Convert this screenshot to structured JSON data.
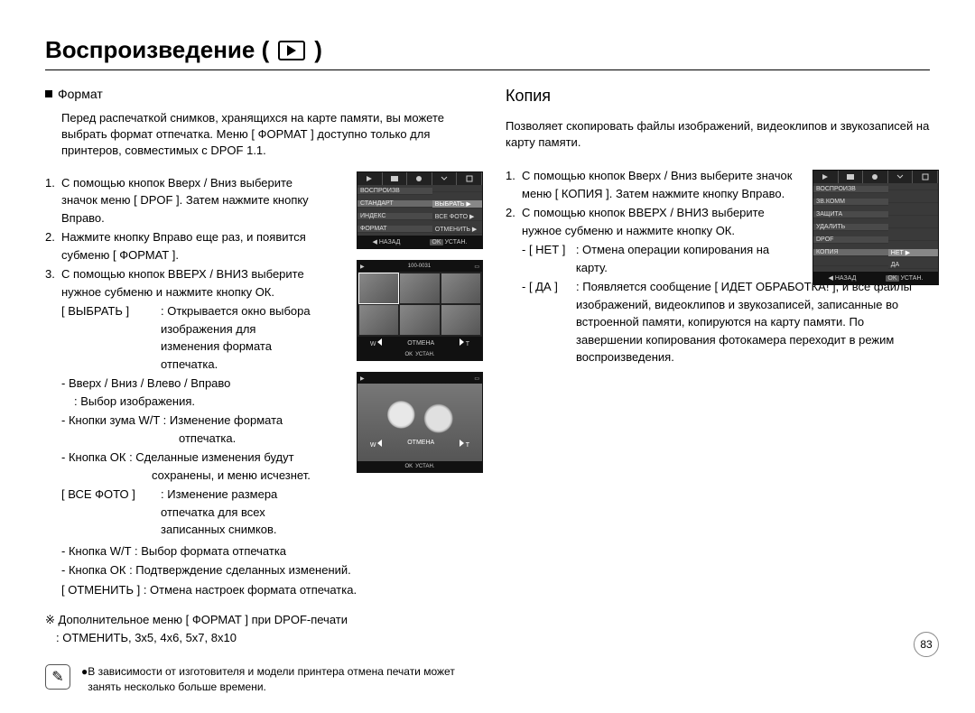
{
  "title": "Воспроизведение (",
  "title_close": ")",
  "left": {
    "subhead": "Формат",
    "intro": "Перед распечаткой снимков, хранящихся на карте памяти, вы можете выбрать формат отпечатка. Меню [ ФОРМАТ ] доступно только для принтеров, совместимых с DPOF 1.1.",
    "step1": "С помощью кнопок Вверх / Вниз выберите значок меню [ DPOF ]. Затем нажмите кнопку Вправо.",
    "step2": "Нажмите кнопку Вправо еще раз, и появится субменю [ ФОРМАТ ].",
    "step3": "С помощью кнопок ВВЕРХ / ВНИЗ выберите нужное субменю и нажмите кнопку ОК.",
    "select_label": "[ ВЫБРАТЬ ]",
    "select_desc": ": Открывается окно выбора изображения для изменения формата отпечатка.",
    "nav_label": "- Вверх / Вниз / Влево / Вправо",
    "nav_desc": ": Выбор изображения.",
    "zoom_label": "- Кнопки зума W/T : Изменение формата",
    "zoom_desc": "отпечатка.",
    "ok_label": "- Кнопка ОК : Сделанные изменения будут",
    "ok_desc": "сохранены, и меню исчезнет.",
    "all_label": "[ ВСЕ ФОТО ]",
    "all_desc": ": Изменение размера отпечатка для всех записанных снимков.",
    "wt_label": "- Кнопка W/T : Выбор формата отпечатка",
    "ok2_label": "- Кнопка ОК : Подтверждение сделанных изменений.",
    "cancel_label": "[ ОТМЕНИТЬ ] : Отмена настроек формата отпечатка.",
    "extra_pre": "※ Дополнительное меню [ ФОРМАТ ] при DPOF-печати",
    "extra_vals": ": ОТМЕНИТЬ, 3x5, 4x6, 5x7, 8x10",
    "note": "В зависимости от изготовителя и модели принтера отмена печати может занять несколько больше времени."
  },
  "right": {
    "heading": "Копия",
    "intro": "Позволяет скопировать файлы изображений, видеоклипов и звукозаписей на карту памяти.",
    "step1": "С помощью кнопок Вверх / Вниз выберите значок меню [ КОПИЯ ]. Затем нажмите кнопку Вправо.",
    "step2": "С помощью кнопок ВВЕРХ / ВНИЗ выберите нужное субменю и нажмите кнопку ОК.",
    "no_label": "- [ НЕТ ]",
    "no_desc": ": Отмена операции копирования на карту.",
    "yes_label": "- [ ДА ]",
    "yes_desc": ": Появляется сообщение [ ИДЕТ ОБРАБОТКА! ], и все файлы изображений, видеоклипов и звукозаписей, записанные во встроенной памяти, копируются на карту памяти. По завершении копирования фотокамера переходит в режим воспроизведения."
  },
  "lcd_left_1": {
    "rows": [
      {
        "l": "ВОСПРОИЗВ",
        "r": ""
      },
      {
        "l": "СТАНДАРТ",
        "r": "ВЫБРАТЬ",
        "sel": true
      },
      {
        "l": "ИНДЕКС",
        "r": "ВСЕ ФОТО"
      },
      {
        "l": "ФОРМАТ",
        "r": "ОТМЕНИТЬ"
      }
    ],
    "foot_back": "◀ НАЗАД",
    "foot_ok": "OK",
    "foot_set": "УСТАН."
  },
  "lcd_left_2": {
    "topbar": "100-0031",
    "w": "W",
    "cancel": "ОТМЕНА",
    "t": "T",
    "ok": "OK",
    "set": "УСТАН."
  },
  "lcd_left_3": {
    "w": "W",
    "cancel": "ОТМЕНА",
    "t": "T",
    "ok": "OK",
    "set": "УСТАН."
  },
  "lcd_right": {
    "rows": [
      {
        "l": "ВОСПРОИЗВ",
        "r": ""
      },
      {
        "l": "ЗВ.КОММ",
        "r": ""
      },
      {
        "l": "ЗАЩИТА",
        "r": ""
      },
      {
        "l": "УДАЛИТЬ",
        "r": ""
      },
      {
        "l": "DPOF",
        "r": ""
      },
      {
        "l": "КОПИЯ",
        "r": "НЕТ",
        "sel": true
      }
    ],
    "sub_yes": "ДА",
    "foot_back": "◀ НАЗАД",
    "foot_ok": "OK",
    "foot_set": "УСТАН."
  },
  "page_number": "83"
}
